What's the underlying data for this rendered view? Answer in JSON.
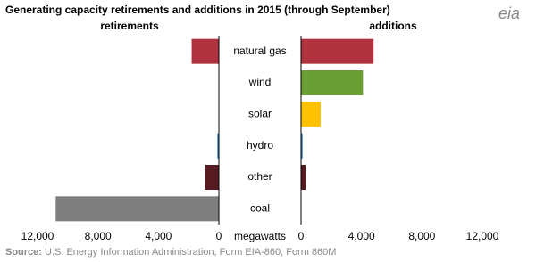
{
  "chart_data": {
    "type": "butterfly",
    "title": "Generating capacity retirements and additions in 2015 (through September)",
    "logo": "eia",
    "categories": [
      "natural gas",
      "wind",
      "solar",
      "hydro",
      "other",
      "coal"
    ],
    "colors": [
      "#b0323f",
      "#6b9d35",
      "#fcc200",
      "#2676b5",
      "#561a20",
      "#7f7f7f"
    ],
    "series": [
      {
        "name": "retirements",
        "values": [
          1800,
          0,
          0,
          100,
          900,
          10800
        ]
      },
      {
        "name": "additions",
        "values": [
          4800,
          4100,
          1300,
          100,
          300,
          0
        ]
      }
    ],
    "xlabel": "megawatts",
    "xlim": [
      0,
      12000
    ],
    "xticks": [
      0,
      {
        "value": 4000,
        "label": "4,000"
      },
      {
        "value": 8000,
        "label": "8,000"
      },
      {
        "value": 12000,
        "label": "12,000"
      }
    ],
    "source_label": "Source:",
    "source": "U.S. Energy Information Administration, Form EIA-860, Form 860M"
  }
}
